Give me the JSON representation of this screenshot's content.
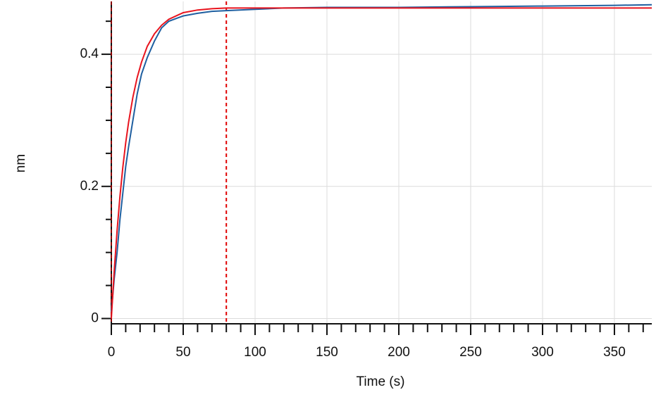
{
  "chart_data": {
    "type": "line",
    "xlabel": "Time (s)",
    "ylabel": "nm",
    "x": [
      0,
      2,
      4,
      6,
      8,
      10,
      12,
      15,
      18,
      21,
      25,
      30,
      35,
      40,
      50,
      60,
      70,
      80,
      100,
      120,
      150,
      200,
      250,
      300,
      350,
      376
    ],
    "series": [
      {
        "color": "#1f5fa0",
        "values": [
          0.01,
          0.06,
          0.1,
          0.15,
          0.19,
          0.23,
          0.26,
          0.3,
          0.34,
          0.37,
          0.395,
          0.42,
          0.44,
          0.45,
          0.458,
          0.462,
          0.465,
          0.466,
          0.468,
          0.47,
          0.471,
          0.471,
          0.472,
          0.473,
          0.474,
          0.475
        ]
      },
      {
        "color": "#e8141e",
        "values": [
          0,
          0.072,
          0.133,
          0.185,
          0.229,
          0.266,
          0.297,
          0.335,
          0.365,
          0.388,
          0.412,
          0.431,
          0.444,
          0.453,
          0.463,
          0.467,
          0.469,
          0.47,
          0.47,
          0.47,
          0.47,
          0.47,
          0.47,
          0.47,
          0.47,
          0.47
        ]
      }
    ],
    "vertical_markers": [
      {
        "value": 0,
        "color": "#8b0000"
      },
      {
        "value": 80,
        "color": "#e00000"
      }
    ],
    "xlim": [
      0,
      376
    ],
    "ylim": [
      -0.008,
      0.48
    ],
    "xticks": [
      0,
      50,
      100,
      150,
      200,
      250,
      300,
      350
    ],
    "yticks": [
      0,
      0.2,
      0.4
    ],
    "xminorticks": [
      10,
      20,
      30,
      40,
      60,
      70,
      80,
      90,
      110,
      120,
      130,
      140,
      160,
      170,
      180,
      190,
      210,
      220,
      230,
      240,
      260,
      270,
      280,
      290,
      310,
      320,
      330,
      340,
      360,
      370
    ],
    "yminorticks": [
      0.05,
      0.1,
      0.15,
      0.25,
      0.3,
      0.35,
      0.45
    ],
    "grid": true
  }
}
